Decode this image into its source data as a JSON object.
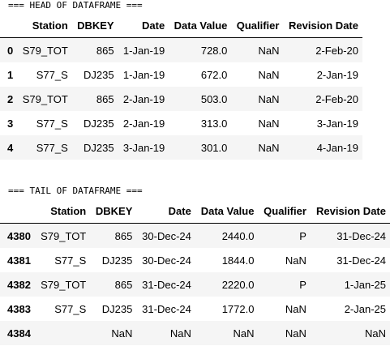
{
  "head": {
    "banner": "=== HEAD OF DATAFRAME ===",
    "columns": [
      "",
      "Station",
      "DBKEY",
      "Date",
      "Data Value",
      "Qualifier",
      "Revision Date"
    ],
    "rows": [
      [
        "0",
        "S79_TOT",
        "865",
        "1-Jan-19",
        "728.0",
        "NaN",
        "2-Feb-20"
      ],
      [
        "1",
        "S77_S",
        "DJ235",
        "1-Jan-19",
        "672.0",
        "NaN",
        "2-Jan-19"
      ],
      [
        "2",
        "S79_TOT",
        "865",
        "2-Jan-19",
        "503.0",
        "NaN",
        "2-Feb-20"
      ],
      [
        "3",
        "S77_S",
        "DJ235",
        "2-Jan-19",
        "313.0",
        "NaN",
        "3-Jan-19"
      ],
      [
        "4",
        "S77_S",
        "DJ235",
        "3-Jan-19",
        "301.0",
        "NaN",
        "4-Jan-19"
      ]
    ]
  },
  "tail": {
    "banner": "=== TAIL OF DATAFRAME ===",
    "columns": [
      "",
      "Station",
      "DBKEY",
      "Date",
      "Data Value",
      "Qualifier",
      "Revision Date"
    ],
    "rows": [
      [
        "4380",
        "S79_TOT",
        "865",
        "30-Dec-24",
        "2440.0",
        "P",
        "31-Dec-24"
      ],
      [
        "4381",
        "S77_S",
        "DJ235",
        "30-Dec-24",
        "1844.0",
        "NaN",
        "31-Dec-24"
      ],
      [
        "4382",
        "S79_TOT",
        "865",
        "31-Dec-24",
        "2220.0",
        "P",
        "1-Jan-25"
      ],
      [
        "4383",
        "S77_S",
        "DJ235",
        "31-Dec-24",
        "1772.0",
        "NaN",
        "2-Jan-25"
      ],
      [
        "4384",
        "",
        "NaN",
        "NaN",
        "NaN",
        "NaN",
        "NaN"
      ]
    ]
  }
}
